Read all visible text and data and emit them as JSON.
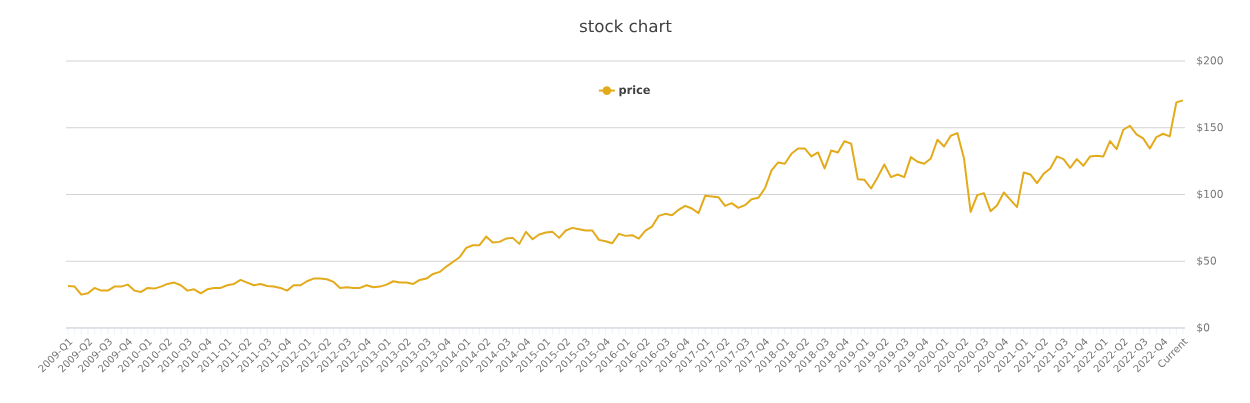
{
  "chart_data": {
    "type": "line",
    "title": "stock chart",
    "categories": [
      "2009-Q1",
      null,
      null,
      "2009-Q2",
      null,
      null,
      "2009-Q3",
      null,
      null,
      "2009-Q4",
      null,
      null,
      "2010-Q1",
      null,
      null,
      "2010-Q2",
      null,
      null,
      "2010-Q3",
      null,
      null,
      "2010-Q4",
      null,
      null,
      "2011-Q1",
      null,
      null,
      "2011-Q2",
      null,
      null,
      "2011-Q3",
      null,
      null,
      "2011-Q4",
      null,
      null,
      "2012-Q1",
      null,
      null,
      "2012-Q2",
      null,
      null,
      "2012-Q3",
      null,
      null,
      "2012-Q4",
      null,
      null,
      "2013-Q1",
      null,
      null,
      "2013-Q2",
      null,
      null,
      "2013-Q3",
      null,
      null,
      "2013-Q4",
      null,
      null,
      "2014-Q1",
      null,
      null,
      "2014-Q2",
      null,
      null,
      "2014-Q3",
      null,
      null,
      "2014-Q4",
      null,
      null,
      "2015-Q1",
      null,
      null,
      "2015-Q2",
      null,
      null,
      "2015-Q3",
      null,
      null,
      "2015-Q4",
      null,
      null,
      "2016-Q1",
      null,
      null,
      "2016-Q2",
      null,
      null,
      "2016-Q3",
      null,
      null,
      "2016-Q4",
      null,
      null,
      "2017-Q1",
      null,
      null,
      "2017-Q2",
      null,
      null,
      "2017-Q3",
      null,
      null,
      "2017-Q4",
      null,
      null,
      "2018-Q1",
      null,
      null,
      "2018-Q2",
      null,
      null,
      "2018-Q3",
      null,
      null,
      "2018-Q4",
      null,
      null,
      "2019-Q1",
      null,
      null,
      "2019-Q2",
      null,
      null,
      "2019-Q3",
      null,
      null,
      "2019-Q4",
      null,
      null,
      "2020-Q1",
      null,
      null,
      "2020-Q2",
      null,
      null,
      "2020-Q3",
      null,
      null,
      "2020-Q4",
      null,
      null,
      "2021-Q1",
      null,
      null,
      "2021-Q2",
      null,
      null,
      "2021-Q3",
      null,
      null,
      "2021-Q4",
      null,
      null,
      "2022-Q1",
      null,
      null,
      "2022-Q2",
      null,
      null,
      "2022-Q3",
      null,
      null,
      "2022-Q4",
      null,
      null,
      "Current"
    ],
    "series": [
      {
        "name": "price",
        "color": "#e3ab1c",
        "values": [
          31.5,
          31,
          25,
          26,
          30,
          28,
          28,
          31,
          31,
          32.5,
          28,
          27,
          30,
          29.5,
          31,
          33,
          34,
          32,
          28,
          29,
          26,
          29,
          30,
          30,
          32,
          33,
          36,
          34,
          32,
          33,
          31.5,
          31,
          30,
          28,
          32,
          32,
          35,
          37,
          37,
          36.5,
          34.5,
          30,
          30.5,
          30,
          30,
          32,
          30.5,
          31,
          32.5,
          35,
          34,
          34,
          33,
          36,
          37,
          40.5,
          42,
          46,
          49.5,
          53,
          60,
          62,
          62,
          68.5,
          64,
          64.5,
          67,
          67.5,
          63,
          72,
          66.5,
          70,
          71.5,
          72,
          67.5,
          73,
          75,
          74,
          73,
          73,
          66,
          65,
          63.5,
          70.5,
          69,
          69.5,
          67,
          73,
          76,
          84,
          85.5,
          84.5,
          88.5,
          91.5,
          89.5,
          86,
          99,
          98.5,
          98,
          91.5,
          93.5,
          90,
          92,
          96.5,
          97.5,
          104.5,
          118,
          124,
          123,
          130.5,
          134.5,
          134.5,
          128.5,
          131.5,
          119.5,
          133,
          131.5,
          140,
          138,
          111.5,
          111,
          104.5,
          113,
          122.5,
          113,
          115,
          113,
          128,
          124.5,
          123,
          127,
          141,
          136,
          144,
          146,
          127,
          87,
          99.5,
          101,
          87.5,
          92,
          101.5,
          96,
          90.5,
          116.5,
          115,
          108.5,
          115.5,
          119.5,
          128.5,
          126.5,
          120,
          126.5,
          121.5,
          128.5,
          129,
          128.5,
          140,
          134,
          148.5,
          151.5,
          145,
          142,
          134.5,
          143,
          145.5,
          143.5,
          169,
          170.5
        ]
      }
    ],
    "ylim": [
      0,
      200
    ],
    "yticks": [
      {
        "value": 0,
        "label": "$0"
      },
      {
        "value": 50,
        "label": "$50"
      },
      {
        "value": 100,
        "label": "$100"
      },
      {
        "value": 150,
        "label": "$150"
      },
      {
        "value": 200,
        "label": "$200"
      }
    ],
    "grid": "y",
    "legend": "top",
    "marker": "none"
  }
}
